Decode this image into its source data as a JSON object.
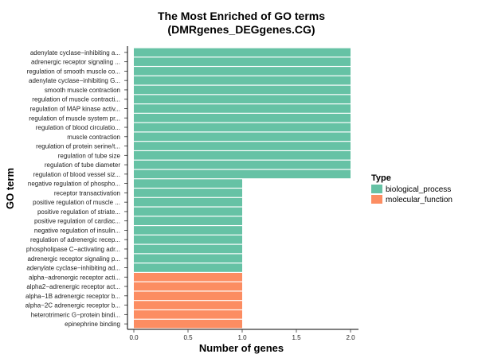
{
  "chart_data": {
    "type": "bar",
    "orientation": "horizontal",
    "title": "The Most Enriched of GO terms",
    "subtitle": "(DMRgenes_DEGgenes.CG)",
    "xlabel": "Number of genes",
    "ylabel": "GO term",
    "xlim": [
      0,
      2.1
    ],
    "xticks": [
      "0.0",
      "0.5",
      "1.0",
      "1.5",
      "2.0"
    ],
    "xtick_values": [
      0,
      0.5,
      1.0,
      1.5,
      2.0
    ],
    "grid": false,
    "legend": {
      "title": "Type",
      "placement": "right",
      "entries": [
        {
          "label": "biological_process",
          "color": "#66c2a5"
        },
        {
          "label": "molecular_function",
          "color": "#fc8d62"
        }
      ]
    },
    "bars": [
      {
        "label": "adenylate cyclase−inhibiting a...",
        "value": 2,
        "type": "biological_process"
      },
      {
        "label": "adrenergic receptor signaling ...",
        "value": 2,
        "type": "biological_process"
      },
      {
        "label": "regulation of smooth muscle co...",
        "value": 2,
        "type": "biological_process"
      },
      {
        "label": "adenylate cyclase−inhibiting G...",
        "value": 2,
        "type": "biological_process"
      },
      {
        "label": "smooth muscle contraction",
        "value": 2,
        "type": "biological_process"
      },
      {
        "label": "regulation of muscle contracti...",
        "value": 2,
        "type": "biological_process"
      },
      {
        "label": "regulation of MAP kinase activ...",
        "value": 2,
        "type": "biological_process"
      },
      {
        "label": "regulation of muscle system pr...",
        "value": 2,
        "type": "biological_process"
      },
      {
        "label": "regulation of blood circulatio...",
        "value": 2,
        "type": "biological_process"
      },
      {
        "label": "muscle contraction",
        "value": 2,
        "type": "biological_process"
      },
      {
        "label": "regulation of protein serine/t...",
        "value": 2,
        "type": "biological_process"
      },
      {
        "label": "regulation of tube size",
        "value": 2,
        "type": "biological_process"
      },
      {
        "label": "regulation of tube diameter",
        "value": 2,
        "type": "biological_process"
      },
      {
        "label": "regulation of blood vessel siz...",
        "value": 2,
        "type": "biological_process"
      },
      {
        "label": "negative regulation of phospho...",
        "value": 1,
        "type": "biological_process"
      },
      {
        "label": "receptor transactivation",
        "value": 1,
        "type": "biological_process"
      },
      {
        "label": "positive regulation of muscle ...",
        "value": 1,
        "type": "biological_process"
      },
      {
        "label": "positive regulation of striate...",
        "value": 1,
        "type": "biological_process"
      },
      {
        "label": "positive regulation of cardiac...",
        "value": 1,
        "type": "biological_process"
      },
      {
        "label": "negative regulation of insulin...",
        "value": 1,
        "type": "biological_process"
      },
      {
        "label": "regulation of adrenergic recep...",
        "value": 1,
        "type": "biological_process"
      },
      {
        "label": "phospholipase C−activating adr...",
        "value": 1,
        "type": "biological_process"
      },
      {
        "label": "adrenergic receptor signaling p...",
        "value": 1,
        "type": "biological_process"
      },
      {
        "label": "adenylate cyclase−inhibiting ad...",
        "value": 1,
        "type": "biological_process"
      },
      {
        "label": "alpha−adrenergic receptor acti...",
        "value": 1,
        "type": "molecular_function"
      },
      {
        "label": "alpha2−adrenergic receptor act...",
        "value": 1,
        "type": "molecular_function"
      },
      {
        "label": "alpha−1B adrenergic receptor b...",
        "value": 1,
        "type": "molecular_function"
      },
      {
        "label": "alpha−2C adrenergic receptor b...",
        "value": 1,
        "type": "molecular_function"
      },
      {
        "label": "heterotrimeric G−protein bindi...",
        "value": 1,
        "type": "molecular_function"
      },
      {
        "label": "epinephrine binding",
        "value": 1,
        "type": "molecular_function"
      }
    ]
  }
}
